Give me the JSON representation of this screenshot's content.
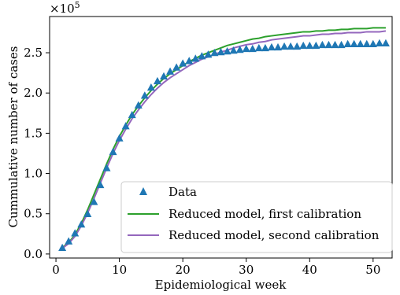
{
  "chart_data": {
    "type": "line",
    "title": "",
    "xlabel": "Epidemiological week",
    "ylabel": "Cummulative number of cases",
    "y_scale_label": "×10",
    "y_scale_exponent": "5",
    "xlim": [
      -1,
      53
    ],
    "ylim": [
      -0.05,
      2.95
    ],
    "x_ticks": [
      0,
      10,
      20,
      30,
      40,
      50
    ],
    "y_ticks": [
      0.0,
      0.5,
      1.0,
      1.5,
      2.0,
      2.5
    ],
    "x_tick_labels": [
      "0",
      "10",
      "20",
      "30",
      "40",
      "50"
    ],
    "y_tick_labels": [
      "0.0",
      "0.5",
      "1.0",
      "1.5",
      "2.0",
      "2.5"
    ],
    "grid": false,
    "legend_position": "lower-right",
    "series": [
      {
        "name": "Data",
        "kind": "scatter",
        "marker": "triangle",
        "color": "#1f77b4",
        "x": [
          1,
          2,
          3,
          4,
          5,
          6,
          7,
          8,
          9,
          10,
          11,
          12,
          13,
          14,
          15,
          16,
          17,
          18,
          19,
          20,
          21,
          22,
          23,
          24,
          25,
          26,
          27,
          28,
          29,
          30,
          31,
          32,
          33,
          34,
          35,
          36,
          37,
          38,
          39,
          40,
          41,
          42,
          43,
          44,
          45,
          46,
          47,
          48,
          49,
          50,
          51,
          52
        ],
        "values": [
          0.08,
          0.16,
          0.26,
          0.37,
          0.5,
          0.65,
          0.86,
          1.07,
          1.27,
          1.44,
          1.59,
          1.73,
          1.85,
          1.97,
          2.07,
          2.15,
          2.21,
          2.27,
          2.32,
          2.37,
          2.4,
          2.43,
          2.46,
          2.48,
          2.5,
          2.51,
          2.52,
          2.53,
          2.54,
          2.55,
          2.55,
          2.56,
          2.56,
          2.57,
          2.57,
          2.58,
          2.58,
          2.58,
          2.59,
          2.59,
          2.59,
          2.6,
          2.6,
          2.6,
          2.6,
          2.61,
          2.61,
          2.61,
          2.61,
          2.61,
          2.62,
          2.62
        ]
      },
      {
        "name": "Reduced model, first calibration",
        "kind": "line",
        "color": "#2ca02c",
        "x": [
          1,
          2,
          3,
          4,
          5,
          6,
          7,
          8,
          9,
          10,
          11,
          12,
          13,
          14,
          15,
          16,
          17,
          18,
          19,
          20,
          21,
          22,
          23,
          24,
          25,
          26,
          27,
          28,
          29,
          30,
          31,
          32,
          33,
          34,
          35,
          36,
          37,
          38,
          39,
          40,
          41,
          42,
          43,
          44,
          45,
          46,
          47,
          48,
          49,
          50,
          51,
          52
        ],
        "values": [
          0.08,
          0.14,
          0.24,
          0.38,
          0.55,
          0.74,
          0.93,
          1.12,
          1.3,
          1.46,
          1.6,
          1.73,
          1.84,
          1.94,
          2.03,
          2.11,
          2.18,
          2.24,
          2.29,
          2.34,
          2.39,
          2.43,
          2.47,
          2.5,
          2.53,
          2.56,
          2.59,
          2.61,
          2.63,
          2.65,
          2.67,
          2.68,
          2.7,
          2.71,
          2.72,
          2.73,
          2.74,
          2.75,
          2.76,
          2.76,
          2.77,
          2.77,
          2.78,
          2.78,
          2.79,
          2.79,
          2.8,
          2.8,
          2.8,
          2.81,
          2.81,
          2.81
        ]
      },
      {
        "name": "Reduced model, second calibration",
        "kind": "line",
        "color": "#9467bd",
        "x": [
          1,
          2,
          3,
          4,
          5,
          6,
          7,
          8,
          9,
          10,
          11,
          12,
          13,
          14,
          15,
          16,
          17,
          18,
          19,
          20,
          21,
          22,
          23,
          24,
          25,
          26,
          27,
          28,
          29,
          30,
          31,
          32,
          33,
          34,
          35,
          36,
          37,
          38,
          39,
          40,
          41,
          42,
          43,
          44,
          45,
          46,
          47,
          48,
          49,
          50,
          51,
          52
        ],
        "values": [
          0.07,
          0.13,
          0.22,
          0.35,
          0.51,
          0.69,
          0.88,
          1.07,
          1.25,
          1.41,
          1.55,
          1.68,
          1.79,
          1.89,
          1.98,
          2.06,
          2.13,
          2.19,
          2.24,
          2.29,
          2.34,
          2.38,
          2.42,
          2.45,
          2.48,
          2.51,
          2.53,
          2.56,
          2.58,
          2.6,
          2.61,
          2.63,
          2.64,
          2.66,
          2.67,
          2.68,
          2.69,
          2.7,
          2.71,
          2.71,
          2.72,
          2.73,
          2.73,
          2.74,
          2.74,
          2.75,
          2.75,
          2.75,
          2.76,
          2.76,
          2.76,
          2.77
        ]
      }
    ]
  }
}
